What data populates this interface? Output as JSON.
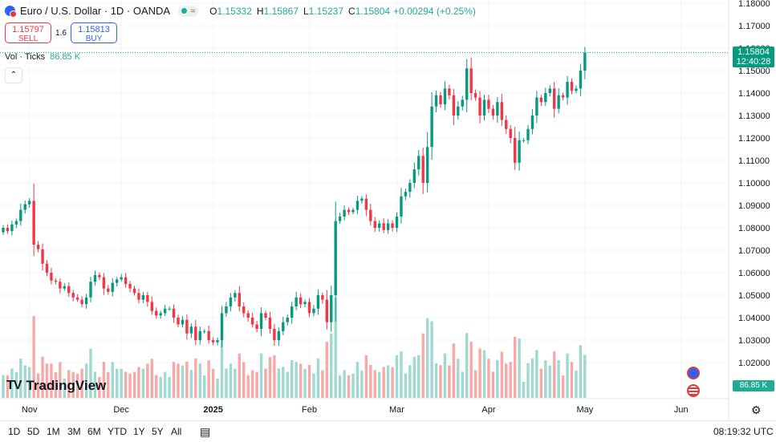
{
  "header": {
    "symbol_title": "Euro / U.S. Dollar · 1D · OANDA",
    "open_label": "O",
    "open_value": "1.15332",
    "high_label": "H",
    "high_value": "1.15867",
    "low_label": "L",
    "low_value": "1.15237",
    "close_label": "C",
    "close_value": "1.15804",
    "change": "+0.00294 (+0.25%)"
  },
  "trade": {
    "sell_price": "1.15797",
    "sell_label": "SELL",
    "spread": "1.6",
    "buy_price": "1.15813",
    "buy_label": "BUY"
  },
  "volume_legend": {
    "label": "Vol · Ticks",
    "value": "86.85 K"
  },
  "collapse_symbol": "⌃",
  "logo": {
    "mark": "TV",
    "text": "TradingView"
  },
  "price_axis_tag": {
    "price": "1.15804",
    "countdown": "12:40:28"
  },
  "volume_axis_tag": "86.85 K",
  "toolbar": {
    "ranges": [
      "1D",
      "5D",
      "1M",
      "3M",
      "6M",
      "YTD",
      "1Y",
      "5Y",
      "All"
    ],
    "clock": "08:19:32 UTC"
  },
  "colors": {
    "up": "#089981",
    "down": "#f23645",
    "vol_up": "#9fd9cf",
    "vol_down": "#f7a9a7",
    "grid": "#f0f3fa"
  },
  "chart_data": {
    "type": "candlestick",
    "symbol": "EURUSD",
    "y_ticks": [
      "1.18000",
      "1.17000",
      "1.16000",
      "1.15000",
      "1.14000",
      "1.13000",
      "1.12000",
      "1.11000",
      "1.10000",
      "1.09000",
      "1.08000",
      "1.07000",
      "1.06000",
      "1.05000",
      "1.04000",
      "1.03000",
      "1.02000"
    ],
    "ylim": [
      1.01,
      1.18
    ],
    "x_labels": [
      {
        "label": "Nov",
        "index": 6
      },
      {
        "label": "Dec",
        "index": 27
      },
      {
        "label": "2025",
        "index": 48
      },
      {
        "label": "Feb",
        "index": 70
      },
      {
        "label": "Mar",
        "index": 90
      },
      {
        "label": "Apr",
        "index": 111
      },
      {
        "label": "May",
        "index": 133
      },
      {
        "label": "Jun",
        "index": 155
      }
    ],
    "close_start": 1.078,
    "closes": [
      1.08,
      1.0785,
      1.0815,
      1.083,
      1.088,
      1.0905,
      1.092,
      1.0725,
      1.0705,
      1.064,
      1.06,
      1.0565,
      1.056,
      1.053,
      1.054,
      1.051,
      1.049,
      1.048,
      1.046,
      1.049,
      1.056,
      1.059,
      1.058,
      1.053,
      1.0515,
      1.0555,
      1.057,
      1.058,
      1.055,
      1.053,
      1.051,
      1.048,
      1.05,
      1.047,
      1.043,
      1.041,
      1.042,
      1.044,
      1.044,
      1.04,
      1.037,
      1.039,
      1.033,
      1.036,
      1.03,
      1.034,
      1.034,
      1.03,
      1.029,
      1.03,
      1.042,
      1.045,
      1.049,
      1.051,
      1.045,
      1.042,
      1.04,
      1.037,
      1.035,
      1.042,
      1.04,
      1.035,
      1.03,
      1.034,
      1.038,
      1.04,
      1.045,
      1.049,
      1.046,
      1.047,
      1.042,
      1.044,
      1.05,
      1.048,
      1.038,
      1.05,
      1.083,
      1.085,
      1.088,
      1.087,
      1.088,
      1.092,
      1.093,
      1.088,
      1.083,
      1.08,
      1.082,
      1.079,
      1.082,
      1.08,
      1.085,
      1.094,
      1.096,
      1.1,
      1.106,
      1.112,
      1.1,
      1.116,
      1.134,
      1.139,
      1.135,
      1.142,
      1.139,
      1.13,
      1.134,
      1.137,
      1.151,
      1.14,
      1.138,
      1.13,
      1.137,
      1.133,
      1.13,
      1.136,
      1.128,
      1.124,
      1.12,
      1.109,
      1.119,
      1.119,
      1.124,
      1.13,
      1.138,
      1.136,
      1.14,
      1.142,
      1.133,
      1.139,
      1.138,
      1.145,
      1.141,
      1.142,
      1.15,
      1.158
    ]
  }
}
